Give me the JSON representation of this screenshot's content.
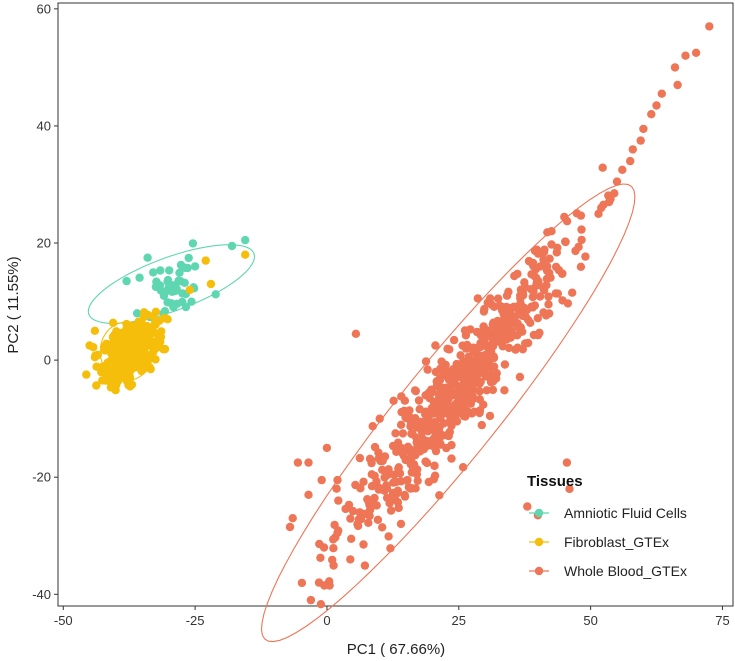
{
  "chart_data": {
    "type": "scatter",
    "xlabel": "PC1 ( 67.66%)",
    "ylabel": "PC2 ( 11.55%)",
    "xlim": [
      -51,
      77
    ],
    "ylim": [
      -42,
      61
    ],
    "xticks": [
      -50,
      -25,
      0,
      25,
      50,
      75
    ],
    "yticks": [
      -40,
      -20,
      0,
      20,
      40,
      60
    ],
    "xtick_labels": [
      "-50",
      "-25",
      "0",
      "25",
      "50",
      "75"
    ],
    "ytick_labels": [
      "-40",
      "-20",
      "0",
      "20",
      "40",
      "60"
    ],
    "grid": false,
    "legend": {
      "title": "Tissues",
      "position": "bottom-right",
      "entries": [
        "Amniotic Fluid Cells",
        "Fibroblast_GTEx",
        "Whole Blood_GTEx"
      ]
    },
    "series": [
      {
        "name": "Amniotic Fluid Cells",
        "color": "#5ED6B0",
        "cluster": {
          "center": [
            -29,
            12
          ],
          "spread": [
            3.6,
            2.4
          ],
          "slope": 0.22,
          "n": 40
        },
        "points": [
          [
            -15.5,
            20.5
          ],
          [
            -18,
            19.5
          ],
          [
            -34,
            17.5
          ],
          [
            -38,
            13.5
          ],
          [
            -25,
            16
          ],
          [
            -31,
            8
          ],
          [
            -36,
            8
          ]
        ],
        "ellipse": {
          "center": [
            -29.5,
            13
          ],
          "rx": 16.5,
          "ry": 4.6,
          "angle_deg": 18
        }
      },
      {
        "name": "Fibroblast_GTEx",
        "color": "#F5BE0A",
        "cluster": {
          "center": [
            -37.5,
            1.5
          ],
          "spread": [
            2.5,
            2.3
          ],
          "slope": 0.45,
          "n": 380
        },
        "points": [
          [
            -15.5,
            18
          ],
          [
            -23,
            17
          ],
          [
            -22,
            13
          ],
          [
            -26,
            12
          ],
          [
            -33,
            7.5
          ],
          [
            -44,
            5
          ],
          [
            -44,
            0.5
          ],
          [
            -42,
            -3.5
          ],
          [
            -40,
            -3.5
          ],
          [
            -42,
            -1
          ],
          [
            -45,
            2.5
          ]
        ],
        "ellipse": {
          "center": [
            -38,
            1.5
          ],
          "rx": 5,
          "ry": 5,
          "angle_deg": 0
        }
      },
      {
        "name": "Whole Blood_GTEx",
        "color": "#EE7556",
        "cluster": {
          "center": [
            25,
            -5
          ],
          "spread": [
            11,
            4.2
          ],
          "slope": 1.12,
          "n": 650
        },
        "points": [
          [
            72.5,
            57
          ],
          [
            70,
            52.5
          ],
          [
            68,
            52
          ],
          [
            66,
            50
          ],
          [
            66.5,
            47
          ],
          [
            63.5,
            45.5
          ],
          [
            62.5,
            43.5
          ],
          [
            61.5,
            42
          ],
          [
            60,
            39.5
          ],
          [
            59.5,
            37.5
          ],
          [
            58,
            36
          ],
          [
            57.5,
            34
          ],
          [
            56,
            32.5
          ],
          [
            55,
            30.5
          ],
          [
            54.5,
            28.5
          ],
          [
            53.5,
            27
          ],
          [
            52,
            26
          ],
          [
            51.5,
            25
          ],
          [
            5.5,
            4.5
          ],
          [
            -0.5,
            -38.5
          ],
          [
            0.5,
            -38.5
          ],
          [
            -1.5,
            -38
          ],
          [
            -6.5,
            -27
          ],
          [
            -7,
            -28.5
          ],
          [
            -3.5,
            -23
          ],
          [
            -3.5,
            -17.5
          ],
          [
            -5.5,
            -17.5
          ],
          [
            -1,
            -20.5
          ],
          [
            0,
            -15
          ],
          [
            2,
            -20.5
          ],
          [
            46,
            -22
          ],
          [
            45.5,
            -17.5
          ],
          [
            40,
            -26.5
          ],
          [
            38,
            -25
          ],
          [
            13,
            -12.5
          ],
          [
            10,
            -10
          ],
          [
            2,
            -29.5
          ],
          [
            8.5,
            -19.5
          ]
        ],
        "ellipse": {
          "center": [
            23,
            -9
          ],
          "rx": 52,
          "ry": 8.8,
          "angle_deg": 48
        }
      }
    ]
  }
}
